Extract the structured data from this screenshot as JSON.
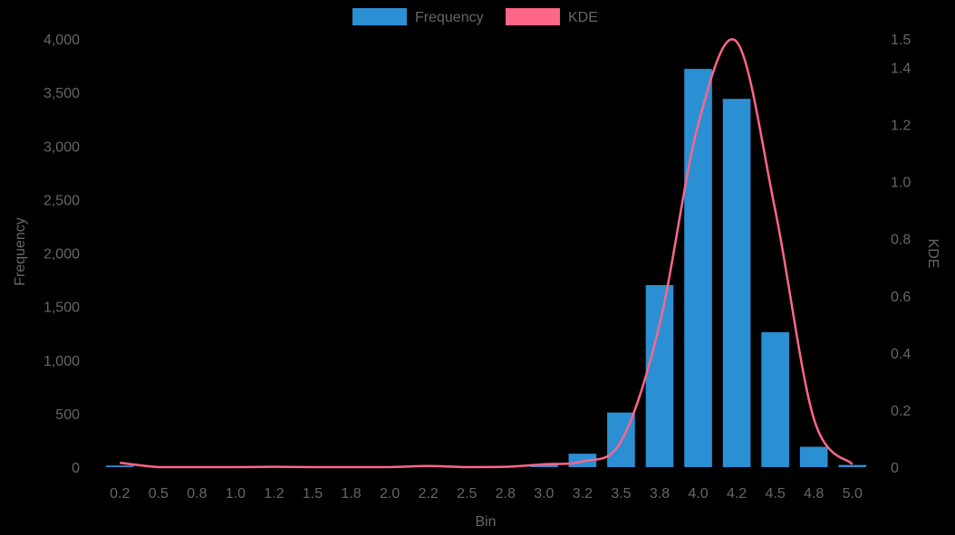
{
  "chart_data": {
    "type": "bar",
    "title": "",
    "xlabel": "Bin",
    "ylabel": "Frequency",
    "y2label": "KDE",
    "categories": [
      "0.2",
      "0.5",
      "0.8",
      "1.0",
      "1.2",
      "1.5",
      "1.8",
      "2.0",
      "2.2",
      "2.5",
      "2.8",
      "3.0",
      "3.2",
      "3.5",
      "3.8",
      "4.0",
      "4.2",
      "4.5",
      "4.8",
      "5.0"
    ],
    "series": [
      {
        "name": "Frequency",
        "type": "bar",
        "axis": "left",
        "color": "#2b8fd3",
        "values": [
          15,
          0,
          0,
          0,
          0,
          0,
          0,
          0,
          0,
          0,
          0,
          25,
          125,
          510,
          1700,
          3720,
          3440,
          1260,
          190,
          20
        ]
      },
      {
        "name": "KDE",
        "type": "line",
        "axis": "right",
        "color": "#ff6688",
        "values": [
          0.015,
          0.0,
          0.0,
          0.0,
          0.001,
          0.0,
          0.0,
          0.0,
          0.004,
          0.0,
          0.001,
          0.01,
          0.02,
          0.09,
          0.5,
          1.2,
          1.49,
          0.9,
          0.17,
          0.01
        ]
      }
    ],
    "yticks": [
      "0",
      "500",
      "1,000",
      "1,500",
      "2,000",
      "2,500",
      "3,000",
      "3,500",
      "4,000"
    ],
    "ytick_values": [
      0,
      500,
      1000,
      1500,
      2000,
      2500,
      3000,
      3500,
      4000
    ],
    "y2ticks": [
      "0",
      "0.2",
      "0.4",
      "0.6",
      "0.8",
      "1.0",
      "1.2",
      "1.4",
      "1.5"
    ],
    "y2tick_values": [
      0,
      0.2,
      0.4,
      0.6,
      0.8,
      1.0,
      1.2,
      1.4,
      1.5
    ],
    "ylim": [
      0,
      4000
    ],
    "y2lim": [
      0,
      1.5
    ],
    "legend_position": "top-center",
    "grid": false,
    "colors": {
      "background": "#000000",
      "text": "#666666"
    }
  }
}
